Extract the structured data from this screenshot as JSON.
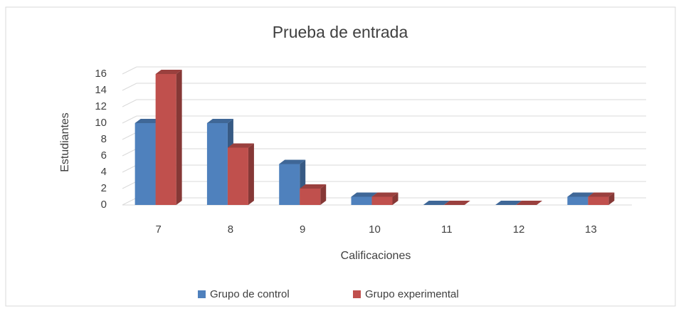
{
  "chart_data": {
    "type": "bar3d",
    "title": "Prueba de entrada",
    "xlabel": "Calificaciones",
    "ylabel": "Estudiantes",
    "categories": [
      "7",
      "8",
      "9",
      "10",
      "11",
      "12",
      "13"
    ],
    "series": [
      {
        "name": "Grupo de control",
        "color": "#4f81bd",
        "values": [
          10,
          10,
          5,
          1,
          0,
          0,
          1
        ]
      },
      {
        "name": "Grupo experimental",
        "color": "#c0504d",
        "values": [
          16,
          7,
          2,
          1,
          0,
          0,
          1
        ]
      }
    ],
    "ylim": [
      0,
      16
    ],
    "yticks": [
      0,
      2,
      4,
      6,
      8,
      10,
      12,
      14,
      16
    ],
    "grid": true,
    "legend": "bottom"
  }
}
